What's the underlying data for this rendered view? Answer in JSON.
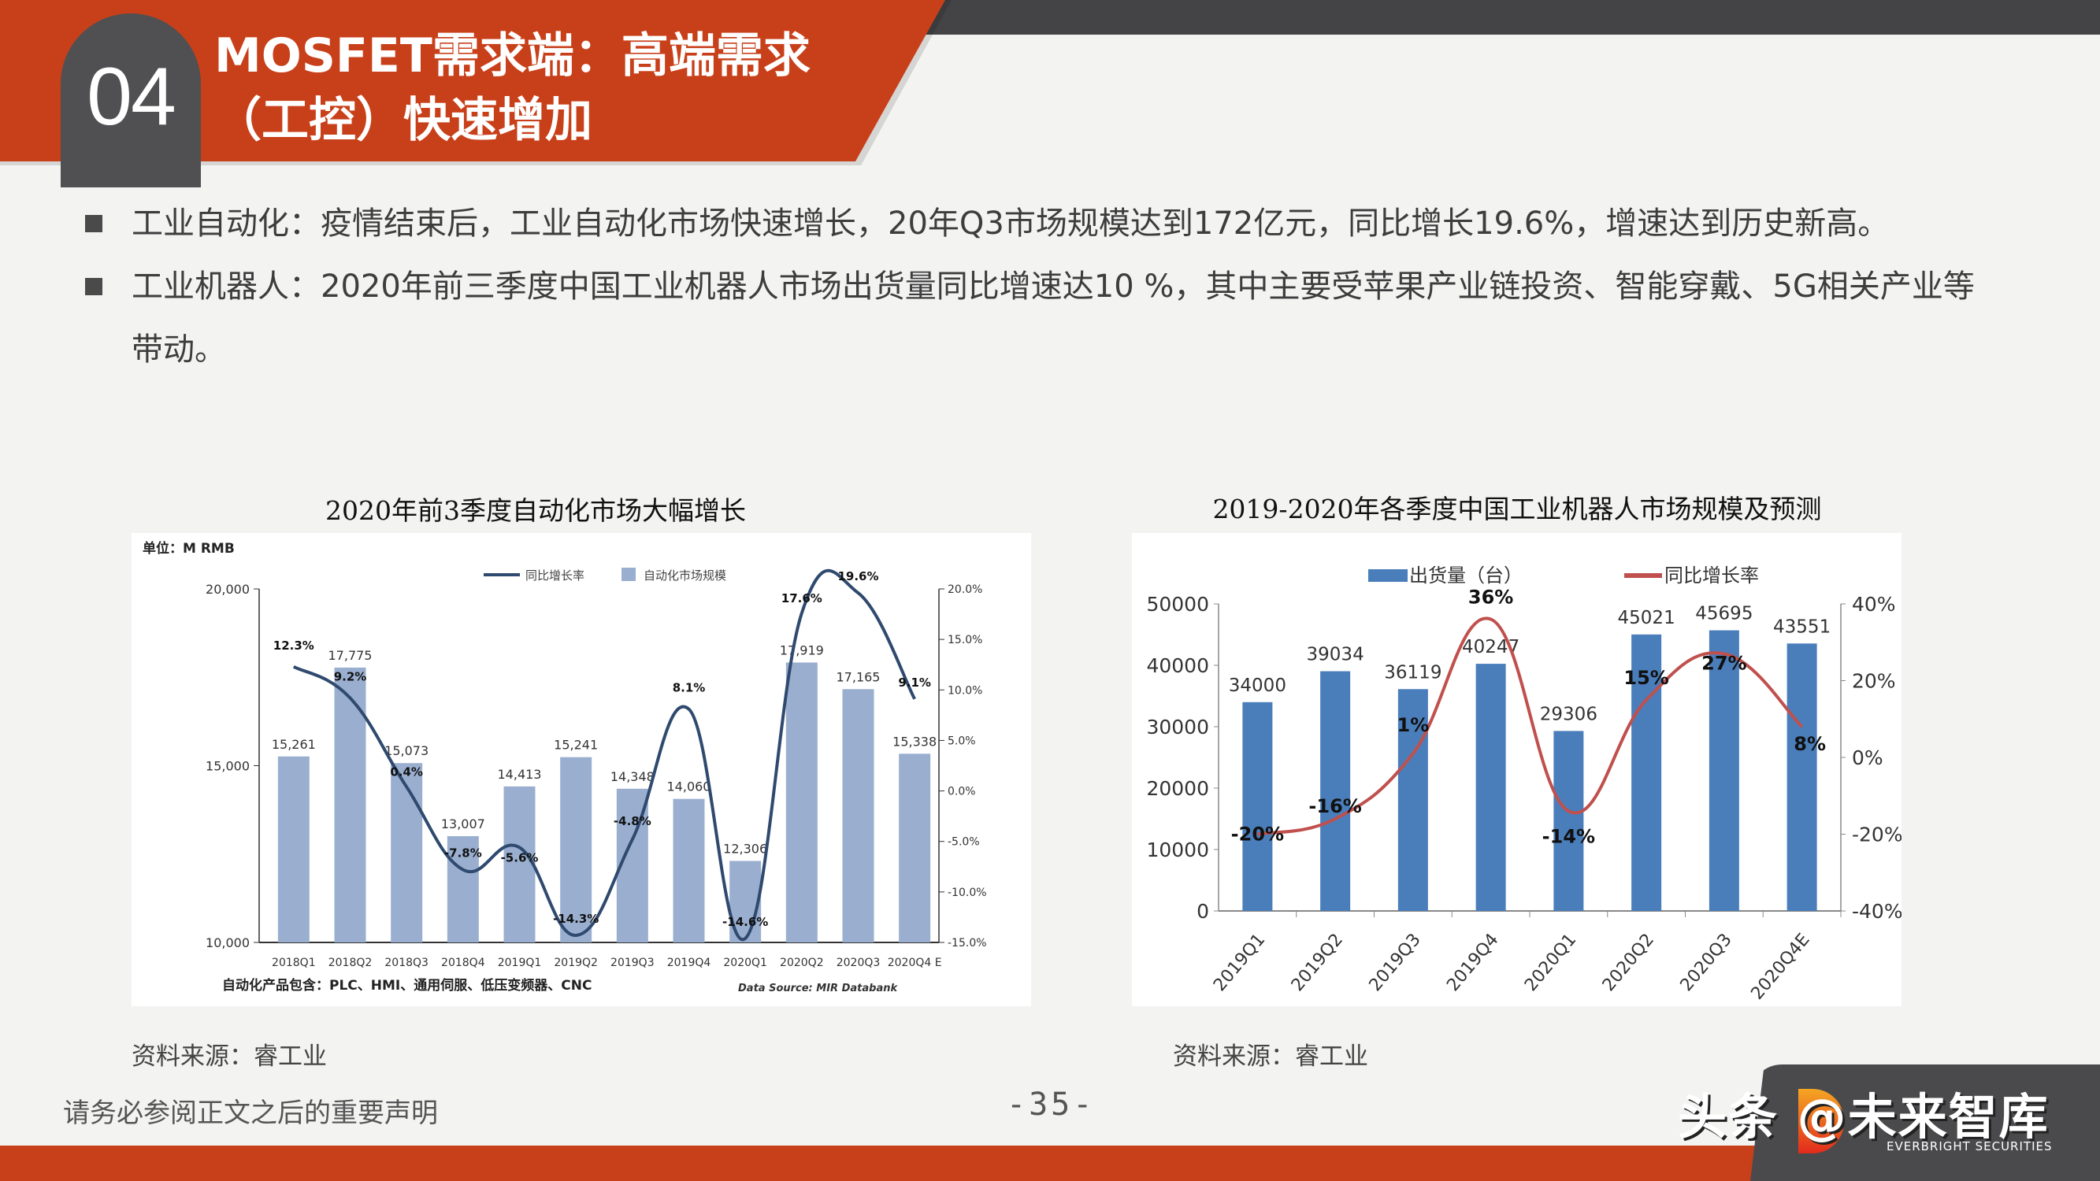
{
  "header": {
    "section_number": "04",
    "title_line1": "MOSFET需求端：高端需求",
    "title_line2": "（工控）快速增加"
  },
  "bullets": [
    {
      "text": "工业自动化：疫情结束后，工业自动化市场快速增长，20年Q3市场规模达到172亿元，同比增长19.6%，增速达到历史新高。"
    },
    {
      "text": "工业机器人：2020年前三季度中国工业机器人市场出货量同比增速达10 %，其中主要受苹果产业链投资、智能穿戴、5G相关产业等带动。"
    }
  ],
  "left_chart": {
    "title": "2020年前3季度自动化市场大幅增长",
    "unit_label": "单位：M RMB",
    "legend_line": "同比增长率",
    "legend_bar": "自动化市场规模",
    "footnote": "自动化产品包含：PLC、HMI、通用伺服、低压变频器、CNC",
    "data_source": "Data Source:  MIR Databank",
    "source": "资料来源：睿工业",
    "colors": {
      "bar": "#9aafd0",
      "line": "#2f4a6e"
    }
  },
  "right_chart": {
    "title": "2019-2020年各季度中国工业机器人市场规模及预测",
    "legend_bar": "出货量（台）",
    "legend_line": "同比增长率",
    "source": "资料来源：睿工业",
    "colors": {
      "bar": "#4a7ebb",
      "line": "#c0504d"
    }
  },
  "footer": {
    "disclaimer": "请务必参阅正文之后的重要声明",
    "page_number": "-35-",
    "watermark": "头条 @未来智库",
    "brand_en": "EVERBRIGHT SECURITIES"
  },
  "chart_data": [
    {
      "type": "bar",
      "title": "2020年前3季度自动化市场大幅增长",
      "categories": [
        "2018Q1",
        "2018Q2",
        "2018Q3",
        "2018Q4",
        "2019Q1",
        "2019Q2",
        "2019Q3",
        "2019Q4",
        "2020Q1",
        "2020Q2",
        "2020Q3",
        "2020Q4 E"
      ],
      "series": [
        {
          "name": "自动化市场规模",
          "type": "bar",
          "axis": "left",
          "values": [
            15261,
            17775,
            15073,
            13007,
            14413,
            15241,
            14348,
            14060,
            12306,
            17919,
            17165,
            15338
          ]
        },
        {
          "name": "同比增长率",
          "type": "line",
          "axis": "right",
          "values": [
            12.3,
            9.2,
            0.4,
            -7.8,
            -5.6,
            -14.3,
            -4.8,
            8.1,
            -14.6,
            17.6,
            19.6,
            9.1
          ],
          "unit": "%"
        }
      ],
      "ylabel": "单位：M RMB",
      "ylim": [
        10000,
        20000
      ],
      "yticks": [
        "10,000",
        "15,000",
        "20,000"
      ],
      "y2lim": [
        -15,
        20
      ],
      "y2ticks": [
        "-15.0%",
        "-10.0%",
        "-5.0%",
        "0.0%",
        "5.0%",
        "10.0%",
        "15.0%",
        "20.0%"
      ],
      "legend": [
        "同比增长率",
        "自动化市场规模"
      ],
      "legend_position": "top",
      "grid": false,
      "annotations": [
        "自动化产品包含：PLC、HMI、通用伺服、低压变频器、CNC",
        "Data Source:  MIR Databank"
      ]
    },
    {
      "type": "bar",
      "title": "2019-2020年各季度中国工业机器人市场规模及预测",
      "categories": [
        "2019Q1",
        "2019Q2",
        "2019Q3",
        "2019Q4",
        "2020Q1",
        "2020Q2",
        "2020Q3",
        "2020Q4E"
      ],
      "series": [
        {
          "name": "出货量（台）",
          "type": "bar",
          "axis": "left",
          "values": [
            34000,
            39034,
            36119,
            40247,
            29306,
            45021,
            45695,
            43551
          ]
        },
        {
          "name": "同比增长率",
          "type": "line",
          "axis": "right",
          "values": [
            -20,
            -16,
            1,
            36,
            -14,
            15,
            27,
            8
          ],
          "unit": "%"
        }
      ],
      "ylim": [
        0,
        50000
      ],
      "yticks": [
        "0",
        "10000",
        "20000",
        "30000",
        "40000",
        "50000"
      ],
      "y2lim": [
        -40,
        40
      ],
      "y2ticks": [
        "-40%",
        "-20%",
        "0%",
        "20%",
        "40%"
      ],
      "legend": [
        "出货量（台）",
        "同比增长率"
      ],
      "legend_position": "top",
      "grid": false
    }
  ]
}
